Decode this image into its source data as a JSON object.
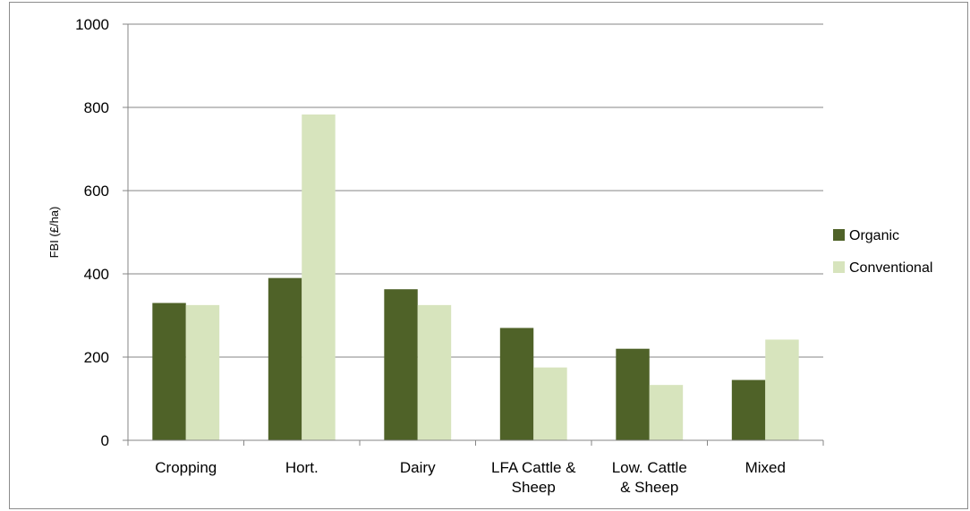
{
  "chart_data": {
    "type": "bar",
    "title": "",
    "xlabel": "",
    "ylabel": "FBI (£/ha)",
    "ylim": [
      0,
      1000
    ],
    "yticks": [
      0,
      200,
      400,
      600,
      800,
      1000
    ],
    "grid": true,
    "legend_position": "right",
    "categories": [
      [
        "Cropping"
      ],
      [
        "Hort."
      ],
      [
        "Dairy"
      ],
      [
        "LFA Cattle &",
        "Sheep"
      ],
      [
        "Low. Cattle",
        "& Sheep"
      ],
      [
        "Mixed"
      ]
    ],
    "series": [
      {
        "name": "Organic",
        "color": "#4f6228",
        "values": [
          330,
          390,
          363,
          270,
          220,
          145
        ]
      },
      {
        "name": "Conventional",
        "color": "#d7e4bd",
        "values": [
          325,
          783,
          325,
          175,
          133,
          242
        ]
      }
    ]
  }
}
